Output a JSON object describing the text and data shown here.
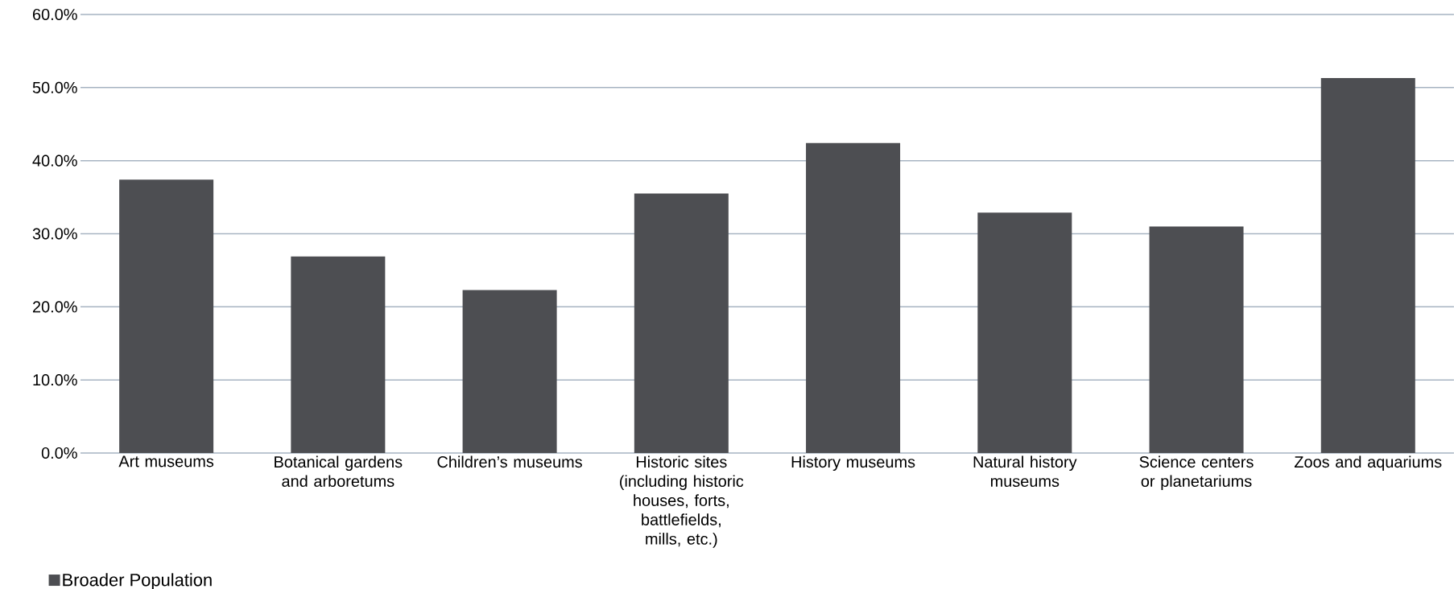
{
  "chart_data": {
    "type": "bar",
    "categories": [
      "Art museums",
      "Botanical gardens and arboretums",
      "Children’s museums",
      "Historic sites (including historic houses, forts, battlefields, mills, etc.)",
      "History museums",
      "Natural history museums",
      "Science centers or planetariums",
      "Zoos and aquariums"
    ],
    "series": [
      {
        "name": "Broader Population",
        "color": "#4d4e52",
        "values": [
          37.4,
          26.9,
          22.3,
          35.5,
          42.4,
          32.9,
          31.0,
          51.3
        ]
      }
    ],
    "ylim": [
      0,
      60
    ],
    "yticks": [
      {
        "value": 0,
        "label": "0.0%"
      },
      {
        "value": 10,
        "label": "10.0%"
      },
      {
        "value": 20,
        "label": "20.0%"
      },
      {
        "value": 30,
        "label": "30.0%"
      },
      {
        "value": 40,
        "label": "40.0%"
      },
      {
        "value": 50,
        "label": "50.0%"
      },
      {
        "value": 60,
        "label": "60.0%"
      }
    ],
    "grid": "y",
    "legend": "bottom left"
  }
}
